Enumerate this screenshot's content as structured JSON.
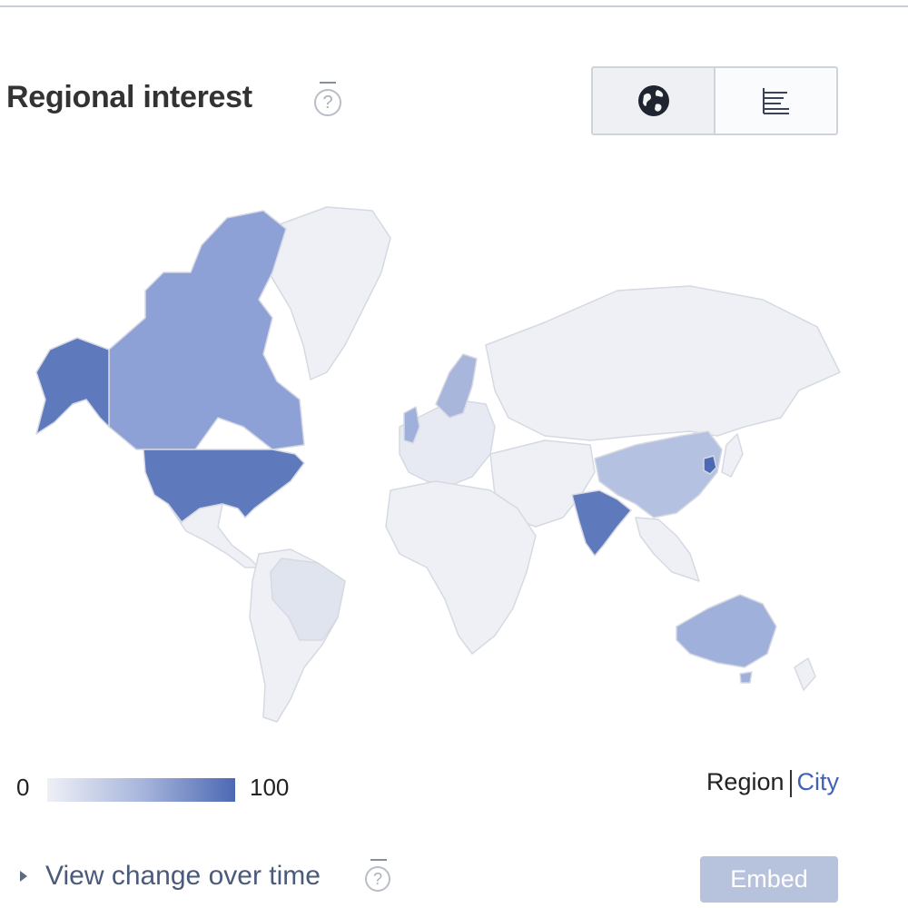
{
  "header": {
    "title": "Regional interest",
    "help_glyph": "?"
  },
  "view_toggle": {
    "map_icon": "globe-icon",
    "list_icon": "bar-list-icon",
    "active": "map"
  },
  "map": {
    "countries": [
      {
        "name": "United States",
        "level": 0.85
      },
      {
        "name": "Alaska",
        "level": 0.85
      },
      {
        "name": "Canada",
        "level": 0.55
      },
      {
        "name": "India",
        "level": 0.8
      },
      {
        "name": "South Korea",
        "level": 0.9
      },
      {
        "name": "China",
        "level": 0.35
      },
      {
        "name": "Australia",
        "level": 0.45
      },
      {
        "name": "Brazil",
        "level": 0.15
      },
      {
        "name": "Norway/Sweden",
        "level": 0.4
      },
      {
        "name": "United Kingdom",
        "level": 0.4
      }
    ],
    "colors": {
      "low": "#eef0f6",
      "high": "#4c69b3",
      "border": "#d5d9e2"
    }
  },
  "legend": {
    "min": "0",
    "max": "100"
  },
  "region_toggle": {
    "region_label": "Region",
    "city_label": "City"
  },
  "footer": {
    "view_change_label": "View change over time",
    "help_glyph": "?",
    "embed_label": "Embed"
  }
}
